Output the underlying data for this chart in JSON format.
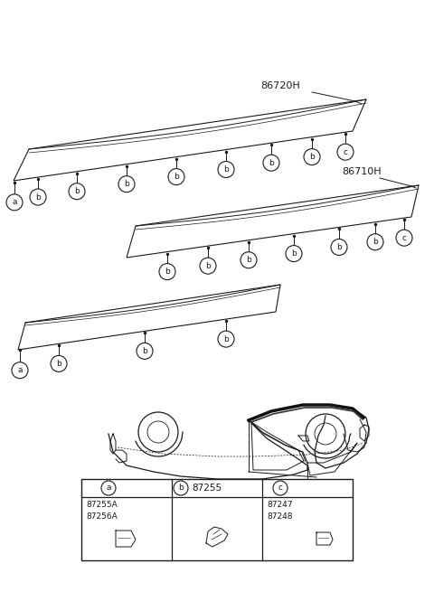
{
  "bg_color": "#ffffff",
  "line_color": "#1a1a1a",
  "label_86720H": "86720H",
  "label_86710H": "86710H",
  "part_a_codes": "87255A\n87256A",
  "part_b_code": "87255",
  "part_c_codes": "87247\n87248",
  "figsize": [
    4.8,
    6.55
  ],
  "dpi": 100
}
